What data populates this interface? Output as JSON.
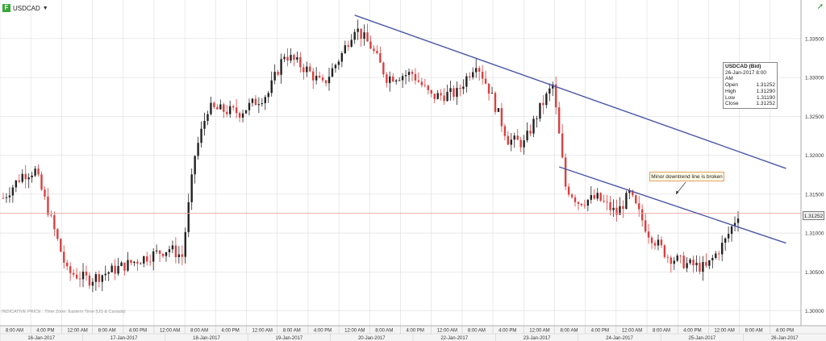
{
  "header": {
    "symbol": "USDCAD",
    "logo_letter": "F"
  },
  "ohlc_box": {
    "title": "USDCAD (Bid)",
    "datetime": "26-Jan-2017 8:00 AM",
    "rows": [
      {
        "label": "Open",
        "value": "1.31252"
      },
      {
        "label": "High",
        "value": "1.31290"
      },
      {
        "label": "Low",
        "value": "1.31190"
      },
      {
        "label": "Close",
        "value": "1.31252"
      }
    ]
  },
  "annotation": {
    "text": "Minor downtrend line is broken"
  },
  "current_price": {
    "label": "1.31252",
    "value": 1.31252
  },
  "disclaimer": "INDICATIVE PRICE . Time Zone: Eastern Time (US & Canada)",
  "colors": {
    "up": "#222222",
    "down": "#d84040",
    "trend": "#4a56a8",
    "price_line": "#f0a0a0",
    "grid": "#dddddd"
  },
  "chart_data": {
    "type": "candlestick",
    "series_name": "USDCAD (Bid)",
    "timeframe": "hourly",
    "ylim": [
      1.2985,
      1.3385
    ],
    "y_ticks": [
      1.3,
      1.305,
      1.31,
      1.315,
      1.32,
      1.325,
      1.33,
      1.335
    ],
    "y_tick_labels": [
      "1.30000",
      "1.30500",
      "1.31000",
      "1.31500",
      "1.32000",
      "1.32500",
      "1.33000",
      "1.33500"
    ],
    "x_time_labels": [
      "8:00 AM",
      "4:00 PM",
      "12:00 AM",
      "8:00 AM",
      "4:00 PM",
      "12:00 AM",
      "8:00 AM",
      "4:00 PM",
      "12:00 AM",
      "8:00 AM",
      "4:00 PM",
      "12:00 AM",
      "8:00 AM",
      "4:00 PM",
      "12:00 AM",
      "8:00 AM",
      "4:00 PM",
      "12:00 AM",
      "8:00 AM",
      "4:00 PM",
      "12:00 AM",
      "8:00 AM",
      "4:00 PM",
      "12:00 AM",
      "8:00 AM",
      "4:00 PM"
    ],
    "x_date_labels": [
      "16-Jan-2017",
      "17-Jan-2017",
      "18-Jan-2017",
      "19-Jan-2017",
      "20-Jan-2017",
      "22-Jan-2017",
      "23-Jan-2017",
      "24-Jan-2017",
      "25-Jan-2017",
      "26-Jan-2017"
    ],
    "path_points": [
      {
        "bar": 0,
        "price": 1.3145
      },
      {
        "bar": 6,
        "price": 1.3175
      },
      {
        "bar": 10,
        "price": 1.318
      },
      {
        "bar": 14,
        "price": 1.313
      },
      {
        "bar": 20,
        "price": 1.305
      },
      {
        "bar": 27,
        "price": 1.304
      },
      {
        "bar": 33,
        "price": 1.305
      },
      {
        "bar": 42,
        "price": 1.3065
      },
      {
        "bar": 52,
        "price": 1.308
      },
      {
        "bar": 56,
        "price": 1.307
      },
      {
        "bar": 60,
        "price": 1.32
      },
      {
        "bar": 64,
        "price": 1.326
      },
      {
        "bar": 74,
        "price": 1.3255
      },
      {
        "bar": 83,
        "price": 1.328
      },
      {
        "bar": 88,
        "price": 1.333
      },
      {
        "bar": 95,
        "price": 1.331
      },
      {
        "bar": 100,
        "price": 1.329
      },
      {
        "bar": 106,
        "price": 1.333
      },
      {
        "bar": 110,
        "price": 1.3365
      },
      {
        "bar": 115,
        "price": 1.334
      },
      {
        "bar": 120,
        "price": 1.33
      },
      {
        "bar": 128,
        "price": 1.3305
      },
      {
        "bar": 134,
        "price": 1.3275
      },
      {
        "bar": 142,
        "price": 1.328
      },
      {
        "bar": 148,
        "price": 1.332
      },
      {
        "bar": 152,
        "price": 1.3285
      },
      {
        "bar": 158,
        "price": 1.322
      },
      {
        "bar": 163,
        "price": 1.3215
      },
      {
        "bar": 168,
        "price": 1.326
      },
      {
        "bar": 172,
        "price": 1.329
      },
      {
        "bar": 176,
        "price": 1.316
      },
      {
        "bar": 180,
        "price": 1.314
      },
      {
        "bar": 186,
        "price": 1.3145
      },
      {
        "bar": 192,
        "price": 1.3125
      },
      {
        "bar": 196,
        "price": 1.315
      },
      {
        "bar": 202,
        "price": 1.31
      },
      {
        "bar": 208,
        "price": 1.307
      },
      {
        "bar": 214,
        "price": 1.306
      },
      {
        "bar": 220,
        "price": 1.3055
      },
      {
        "bar": 226,
        "price": 1.309
      },
      {
        "bar": 230,
        "price": 1.3125
      }
    ],
    "bar_count": 231,
    "trendlines": [
      {
        "from": {
          "bar": 110,
          "price": 1.338
        },
        "to": {
          "bar": 245,
          "price": 1.3183
        }
      },
      {
        "from": {
          "bar": 174,
          "price": 1.3185
        },
        "to": {
          "bar": 245,
          "price": 1.3087
        }
      }
    ]
  }
}
